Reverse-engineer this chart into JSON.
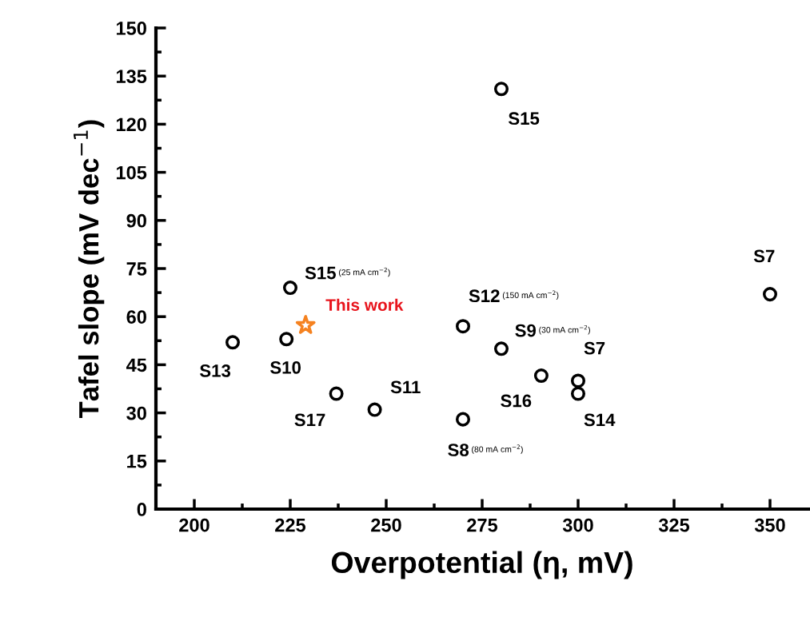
{
  "chart_data": {
    "type": "scatter",
    "xlabel": "Overpotential (η, mV)",
    "ylabel": "Tafel slope (mV dec$^{−1}$)",
    "xlim": [
      190,
      360
    ],
    "xticks": [
      200,
      225,
      250,
      275,
      300,
      325,
      350
    ],
    "ylim": [
      0,
      150
    ],
    "yticks": [
      0,
      15,
      30,
      45,
      60,
      75,
      90,
      105,
      120,
      135,
      150
    ],
    "grid": false,
    "legend": false,
    "series": [
      {
        "color": "#000000",
        "marker": "circle",
        "x": [
          210,
          224,
          225,
          237,
          247,
          270,
          270,
          280,
          280,
          290.4,
          300,
          300,
          350
        ],
        "values": [
          52,
          53,
          69,
          36,
          31,
          57,
          28,
          50,
          131,
          41.6,
          40,
          36,
          67
        ]
      },
      {
        "name": "This work",
        "color": "#f58220",
        "marker": "star",
        "x": [
          229
        ],
        "values": [
          57.3
        ]
      }
    ],
    "annotations": [
      {
        "text": "S13",
        "x": 210,
        "y": 52
      },
      {
        "text": "S10",
        "x": 224,
        "y": 53
      },
      {
        "text": "S15 (25 mA cm$^{−2}$)",
        "x": 225,
        "y": 69
      },
      {
        "text": "S17",
        "x": 237,
        "y": 36
      },
      {
        "text": "S11",
        "x": 247,
        "y": 31
      },
      {
        "text": "S12 (150 mA cm$^{−2}$)",
        "x": 270,
        "y": 57
      },
      {
        "text": "S8 (80 mA cm$^{−2}$)",
        "x": 270,
        "y": 28
      },
      {
        "text": "S9 (30 mA cm$^{−2}$)",
        "x": 280,
        "y": 50
      },
      {
        "text": "S15",
        "x": 280,
        "y": 131
      },
      {
        "text": "S16",
        "x": 290.4,
        "y": 41.6
      },
      {
        "text": "S7",
        "x": 300,
        "y": 40
      },
      {
        "text": "S14",
        "x": 300,
        "y": 36
      },
      {
        "text": "S7",
        "x": 350,
        "y": 67
      }
    ]
  }
}
